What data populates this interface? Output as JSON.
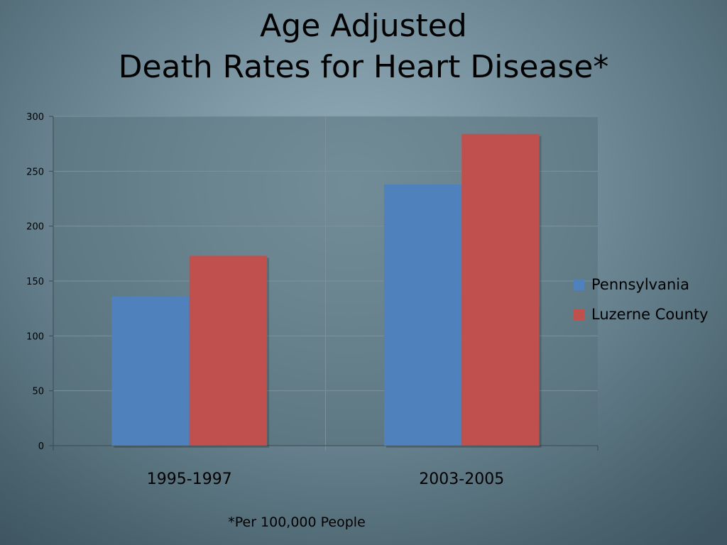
{
  "title_line1": "Age Adjusted",
  "title_line2": "Death Rates for Heart Disease*",
  "footnote": "*Per 100,000 People",
  "colors": {
    "pennsylvania": "#4f81bd",
    "luzerne": "#c0504d"
  },
  "chart_data": {
    "type": "bar",
    "categories": [
      "1995-1997",
      "2003-2005"
    ],
    "series": [
      {
        "name": "Pennsylvania",
        "values": [
          136,
          238
        ]
      },
      {
        "name": "Luzerne County",
        "values": [
          173,
          284
        ]
      }
    ],
    "ylim": [
      0,
      300
    ],
    "yticks": [
      "0",
      "50",
      "100",
      "150",
      "200",
      "250",
      "300"
    ],
    "grid": true,
    "legend_position": "right"
  }
}
